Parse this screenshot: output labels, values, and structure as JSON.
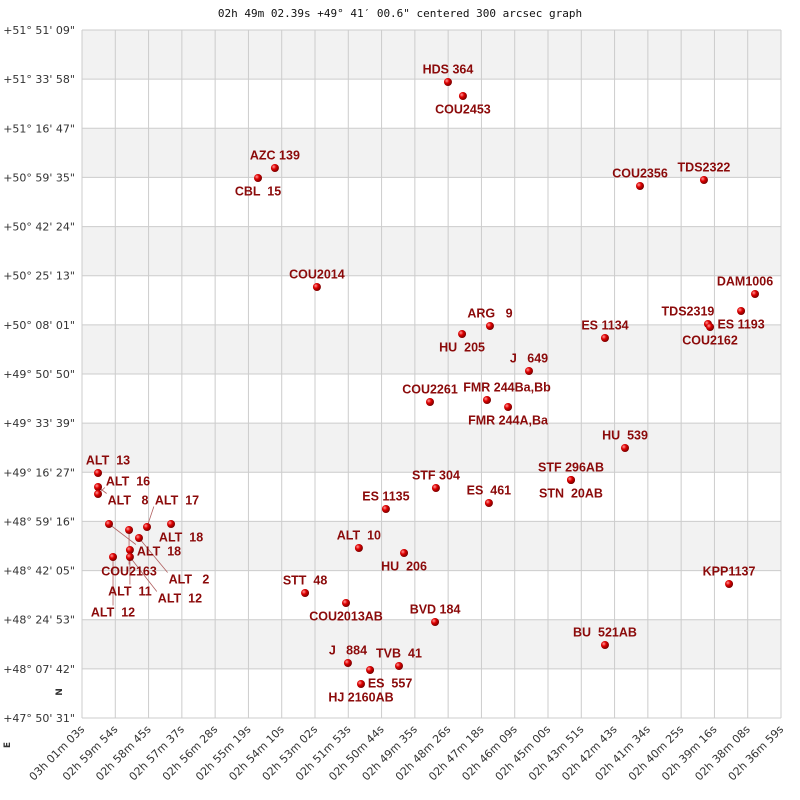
{
  "chart_data": {
    "type": "scatter",
    "title": "02h 49m 02.39s +49° 41′ 00.6\" centered 300 arcsec graph",
    "xlabel": "",
    "ylabel": "",
    "x_unit": "RA hours",
    "y_unit": "Dec degrees",
    "xlim_ra_hours": [
      3.0175,
      2.61639
    ],
    "ylim_dec_deg": [
      47.84194,
      51.8525
    ],
    "x_reversed": true,
    "grid": true,
    "alternating_bands": true,
    "x_ticks": [
      "03h 01m 03s",
      "02h 59m 54s",
      "02h 58m 45s",
      "02h 57m 37s",
      "02h 56m 28s",
      "02h 55m 19s",
      "02h 54m 10s",
      "02h 53m 02s",
      "02h 51m 53s",
      "02h 50m 44s",
      "02h 49m 35s",
      "02h 48m 26s",
      "02h 47m 18s",
      "02h 46m 09s",
      "02h 45m 00s",
      "02h 43m 51s",
      "02h 42m 43s",
      "02h 41m 34s",
      "02h 40m 25s",
      "02h 39m 16s",
      "02h 38m 08s",
      "02h 36m 59s"
    ],
    "y_ticks": [
      "+51° 51' 09\"",
      "+51° 33' 58\"",
      "+51° 16' 47\"",
      "+50° 59' 35\"",
      "+50° 42' 24\"",
      "+50° 25' 13\"",
      "+50° 08' 01\"",
      "+49° 50' 50\"",
      "+49° 33' 39\"",
      "+49° 16' 27\"",
      "+48° 59' 16\"",
      "+48° 42' 05\"",
      "+48° 24' 53\"",
      "+48° 07' 42\"",
      "+47° 50' 31\""
    ],
    "compass": {
      "north": "N",
      "east": "E"
    },
    "colors": {
      "point": "#e00000",
      "label": "#8b0a0a",
      "band": "#f2f2f2",
      "grid": "#cccccc"
    },
    "points": [
      {
        "name": "HDS 364",
        "ra": 2.8075,
        "dec": 51.5494
      },
      {
        "name": "COU2453",
        "ra": 2.7989,
        "dec": 51.4678
      },
      {
        "name": "AZC 139",
        "ra": 2.9068,
        "dec": 51.0481
      },
      {
        "name": "CBL  15",
        "ra": 2.9165,
        "dec": 50.9898
      },
      {
        "name": "COU2356",
        "ra": 2.6973,
        "dec": 50.9431
      },
      {
        "name": "TDS2322",
        "ra": 2.6606,
        "dec": 50.9781
      },
      {
        "name": "DAM1006",
        "ra": 2.6313,
        "dec": 50.3136
      },
      {
        "name": "ES 1193",
        "ra": 2.6393,
        "dec": 50.2145
      },
      {
        "name": "TDS2319",
        "ra": 2.6583,
        "dec": 50.1387
      },
      {
        "name": "COU2162",
        "ra": 2.6571,
        "dec": 50.1212
      },
      {
        "name": "ES 1134",
        "ra": 2.7174,
        "dec": 50.0571
      },
      {
        "name": "COU2014",
        "ra": 2.8827,
        "dec": 50.3544
      },
      {
        "name": "HU  205",
        "ra": 2.7994,
        "dec": 50.0804
      },
      {
        "name": "ARG   9",
        "ra": 2.7834,
        "dec": 50.127
      },
      {
        "name": "J   649",
        "ra": 2.761,
        "dec": 49.8647
      },
      {
        "name": "COU2261",
        "ra": 2.8178,
        "dec": 49.684
      },
      {
        "name": "FMR 244Ba,Bb",
        "ra": 2.7851,
        "dec": 49.6957
      },
      {
        "name": "FMR 244A,Ba",
        "ra": 2.773,
        "dec": 49.6549
      },
      {
        "name": "HU  539",
        "ra": 2.7059,
        "dec": 49.4159
      },
      {
        "name": "STF 296AB",
        "ra": 2.7369,
        "dec": 49.2293
      },
      {
        "name": "STN  20AB",
        "ra": 2.7369,
        "dec": 49.2293
      },
      {
        "name": "KPP1137",
        "ra": 2.6462,
        "dec": 48.6231
      },
      {
        "name": "BU  521AB",
        "ra": 2.7174,
        "dec": 48.2675
      },
      {
        "name": "STF 304",
        "ra": 2.8144,
        "dec": 49.1827
      },
      {
        "name": "ES  461",
        "ra": 2.784,
        "dec": 49.0952
      },
      {
        "name": "ES 1135",
        "ra": 2.8431,
        "dec": 49.0603
      },
      {
        "name": "ALT  10",
        "ra": 2.8586,
        "dec": 48.8329
      },
      {
        "name": "HU  206",
        "ra": 2.8327,
        "dec": 48.8038
      },
      {
        "name": "STT  48",
        "ra": 2.8895,
        "dec": 48.5706
      },
      {
        "name": "COU2013AB",
        "ra": 2.866,
        "dec": 48.5123
      },
      {
        "name": "BVD 184",
        "ra": 2.8149,
        "dec": 48.4016
      },
      {
        "name": "J   884",
        "ra": 2.8649,
        "dec": 48.1626
      },
      {
        "name": "ES  557",
        "ra": 2.8522,
        "dec": 48.1218
      },
      {
        "name": "TVB  41",
        "ra": 2.8356,
        "dec": 48.1451
      },
      {
        "name": "HJ 2160AB",
        "ra": 2.8574,
        "dec": 48.0401
      },
      {
        "name": "ALT  13",
        "ra": 3.0083,
        "dec": 49.2701
      },
      {
        "name": "ALT   8",
        "ra": 3.0083,
        "dec": 49.1885
      },
      {
        "name": "ALT  16",
        "ra": 3.0083,
        "dec": 49.1477
      },
      {
        "name": "ALT  18",
        "ra": 3.002,
        "dec": 48.9728
      },
      {
        "name": "COU2163",
        "ra": 2.9905,
        "dec": 48.9379
      },
      {
        "name": "ALT  17",
        "ra": 2.9802,
        "dec": 48.9553
      },
      {
        "name": "ALT  18",
        "ra": 2.9664,
        "dec": 48.9728
      },
      {
        "name": "ALT   2",
        "ra": 2.9848,
        "dec": 48.8912
      },
      {
        "name": "ALT  11",
        "ra": 2.99,
        "dec": 48.8213
      },
      {
        "name": "ALT  12",
        "ra": 2.99,
        "dec": 48.7805
      },
      {
        "name": "ALT  12",
        "ra": 2.9997,
        "dec": 48.7805
      }
    ]
  }
}
